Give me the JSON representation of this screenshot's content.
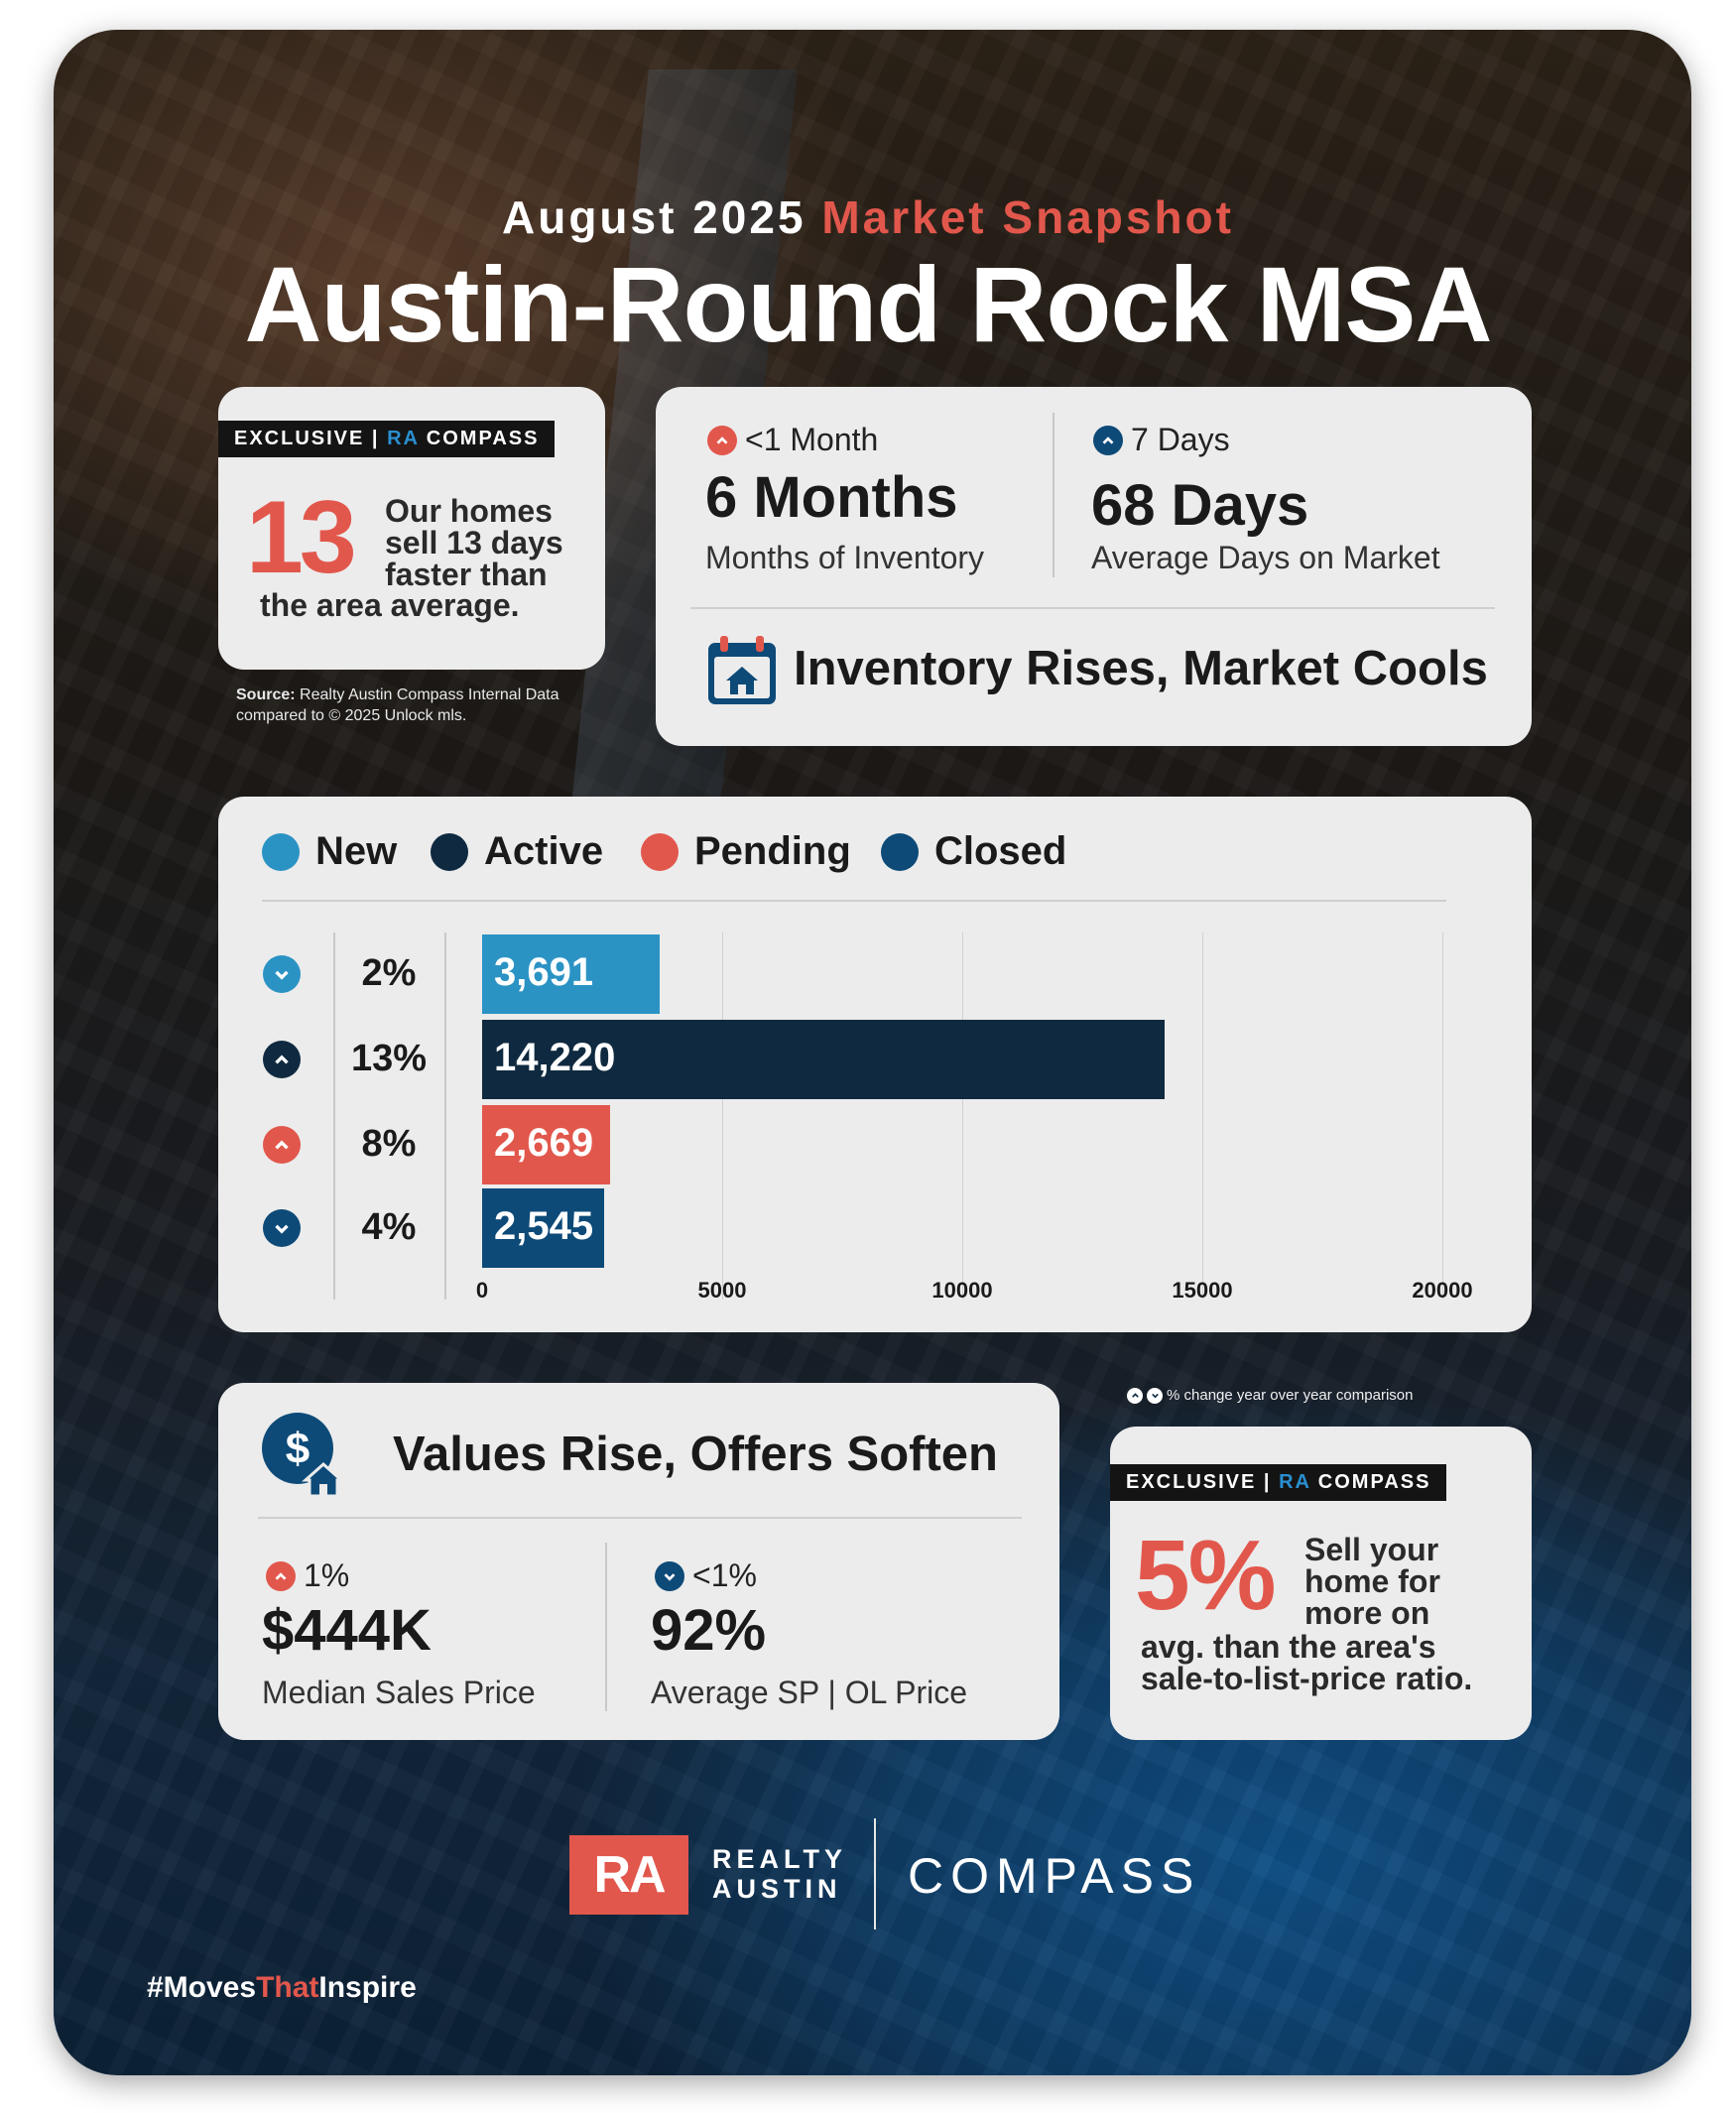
{
  "header": {
    "subtitle_date": "August 2025",
    "subtitle_accent": "Market Snapshot",
    "title": "Austin-Round Rock MSA"
  },
  "exclusive_1": {
    "badge_prefix": "EXCLUSIVE |",
    "badge_ra": "RA",
    "badge_suffix": "COMPASS",
    "big_number": "13",
    "text_lines": [
      "Our homes",
      "sell 13 days",
      "faster than"
    ],
    "text_last": "the area average."
  },
  "source": {
    "label": "Source:",
    "line1": "Realty Austin Compass Internal Data",
    "line2": "compared to © 2025 Unlock mls."
  },
  "inventory_card": {
    "months": {
      "change_direction": "up",
      "change_color": "#e2574c",
      "change": "<1 Month",
      "value": "6 Months",
      "label": "Months of Inventory"
    },
    "days": {
      "change_direction": "up",
      "change_color": "#0d4a78",
      "change": "7 Days",
      "value": "68 Days",
      "label": "Average Days on Market"
    },
    "headline_icon": "calendar-house-icon",
    "headline": "Inventory Rises, Market Cools"
  },
  "chart_data": {
    "type": "bar",
    "orientation": "horizontal",
    "legend": [
      "New",
      "Active",
      "Pending",
      "Closed"
    ],
    "categories": [
      "New",
      "Active",
      "Pending",
      "Closed"
    ],
    "values": [
      3691,
      14220,
      2669,
      2545
    ],
    "value_labels": [
      "3,691",
      "14,220",
      "2,669",
      "2,545"
    ],
    "colors": [
      "#2b93c4",
      "#0f2a40",
      "#e2574c",
      "#0d4a78"
    ],
    "pct_change": [
      "2%",
      "13%",
      "8%",
      "4%"
    ],
    "change_direction": [
      "down",
      "up",
      "up",
      "down"
    ],
    "xlim": [
      0,
      20000
    ],
    "xticks": [
      0,
      5000,
      10000,
      15000,
      20000
    ],
    "xtick_labels": [
      "0",
      "5000",
      "10000",
      "15000",
      "20000"
    ],
    "grid": true
  },
  "values_card": {
    "headline_icon": "dollar-house-icon",
    "headline": "Values Rise, Offers Soften",
    "price": {
      "change_direction": "up",
      "change": "1%",
      "value": "$444K",
      "label": "Median Sales Price"
    },
    "ratio": {
      "change_direction": "down",
      "change": "<1%",
      "value": "92%",
      "label": "Average SP | OL Price"
    }
  },
  "note": "% change year over year comparison",
  "exclusive_2": {
    "badge_prefix": "EXCLUSIVE |",
    "badge_ra": "RA",
    "badge_suffix": "COMPASS",
    "big_number": "5%",
    "text_lines": [
      "Sell your",
      "home for",
      "more on"
    ],
    "text_last": [
      "avg. than the area's",
      "sale-to-list-price ratio."
    ]
  },
  "footer": {
    "logo_mark": "RA",
    "logo_line1": "REALTY",
    "logo_line2": "AUSTIN",
    "compass": "COMPASS",
    "hashtag_1": "#Moves",
    "hashtag_2": "That",
    "hashtag_3": "Inspire"
  }
}
